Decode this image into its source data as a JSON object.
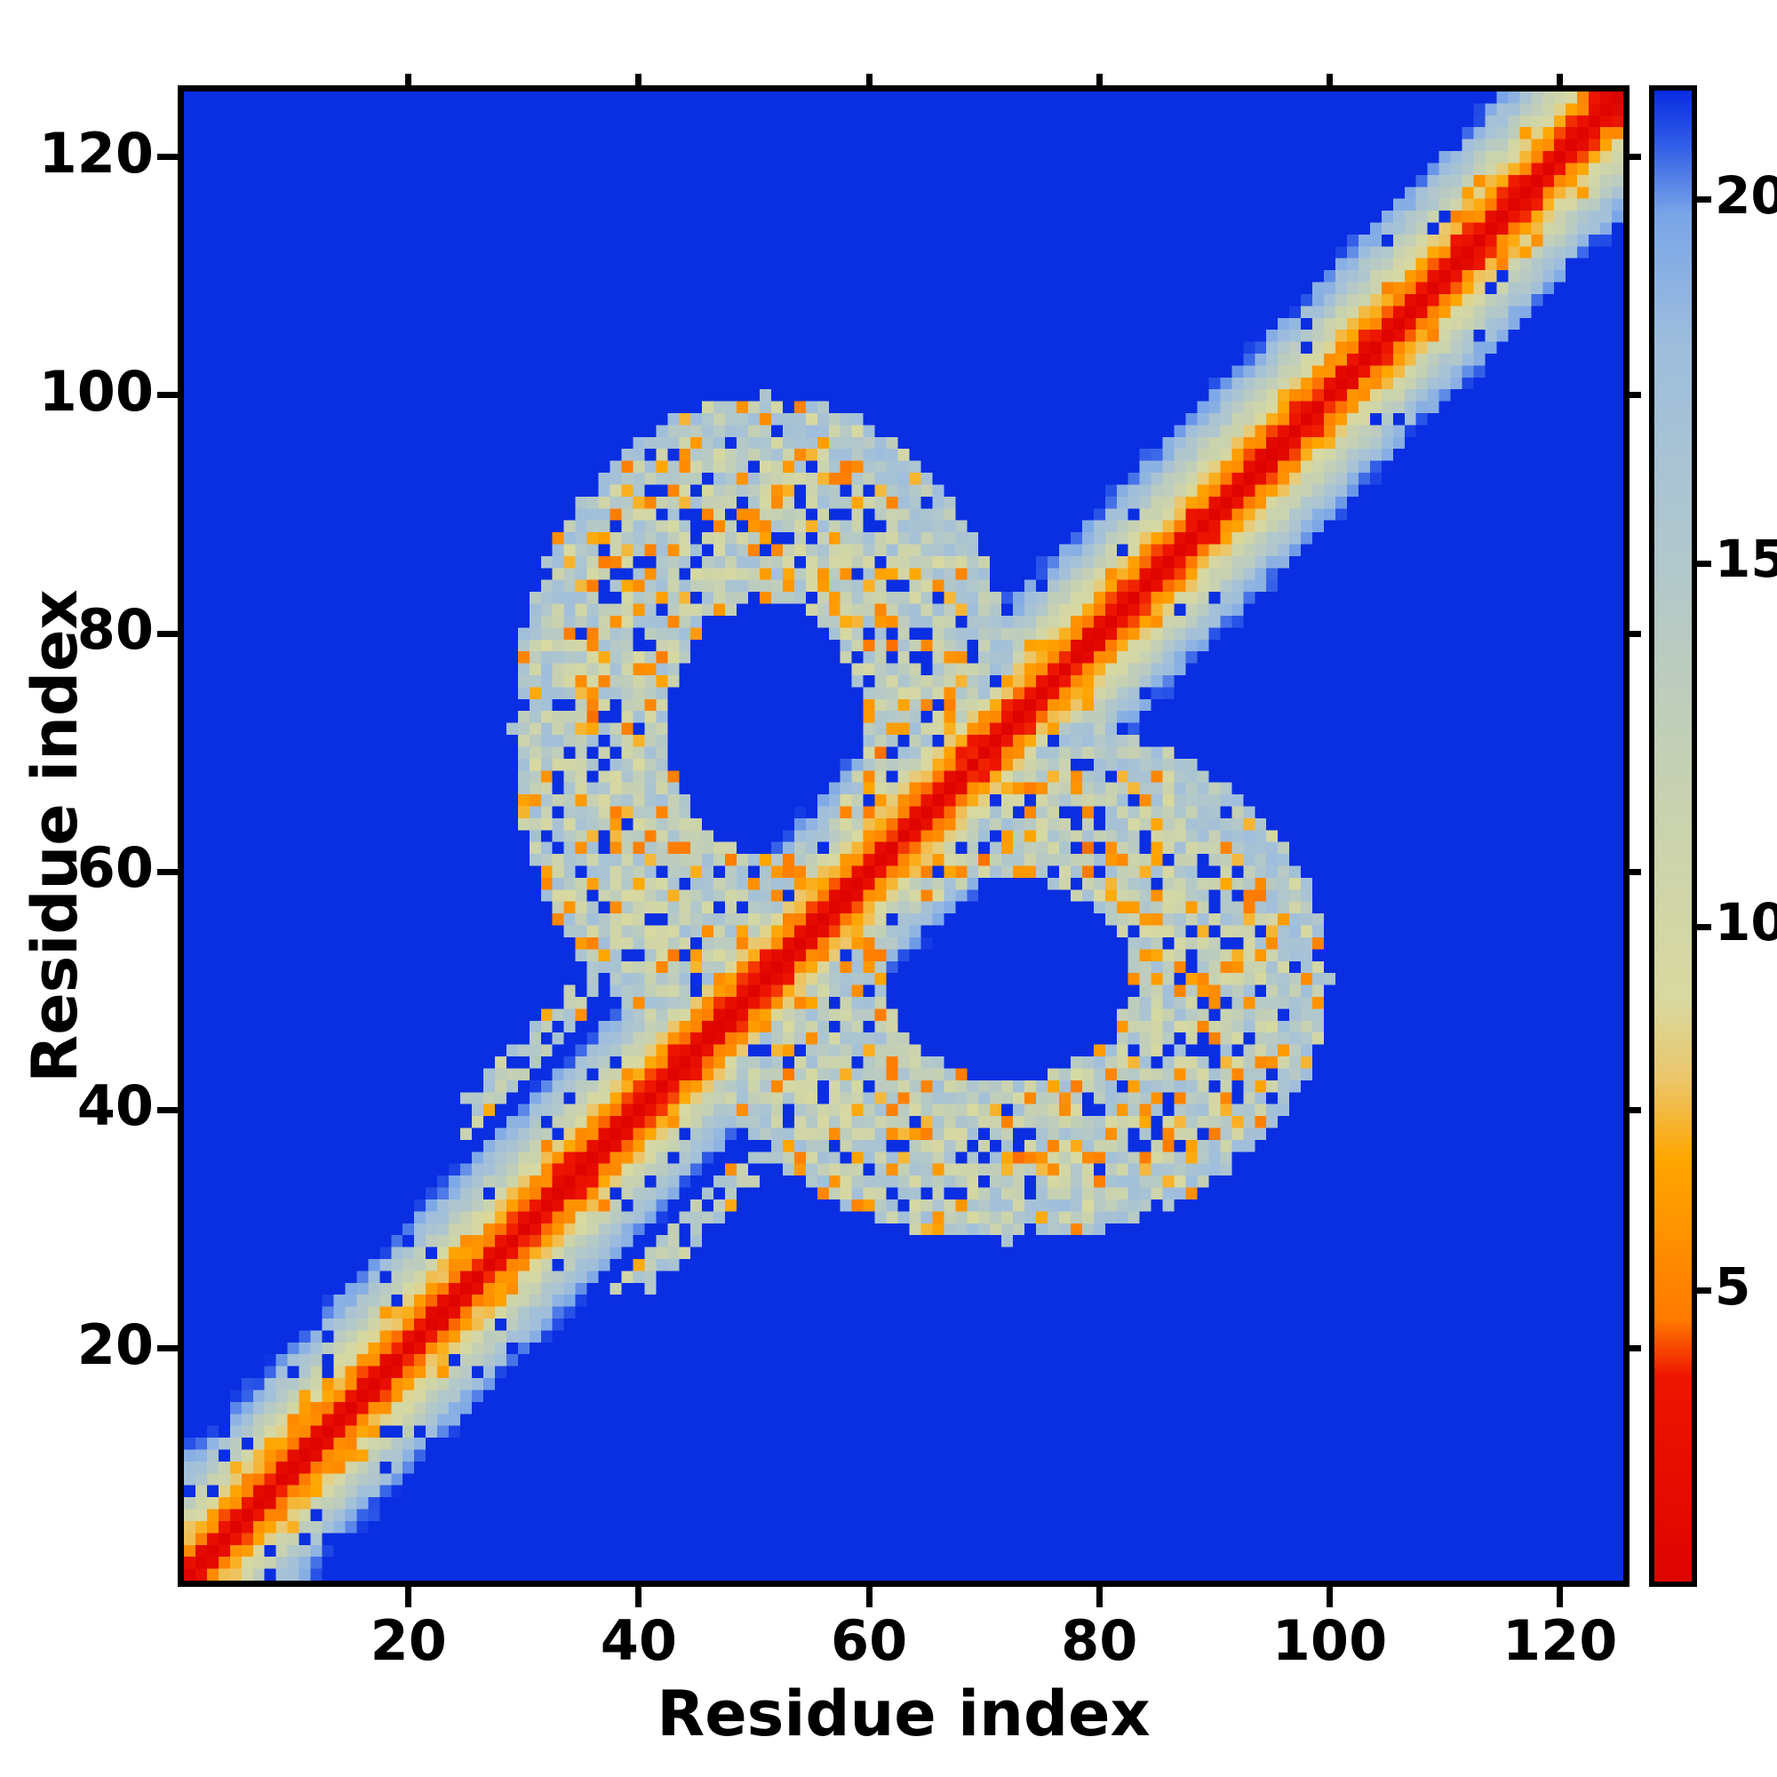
{
  "chart_data": {
    "type": "heatmap",
    "title": "",
    "xlabel": "Residue index",
    "ylabel": "Residue index",
    "x_ticks": [
      20,
      40,
      60,
      80,
      100,
      120
    ],
    "y_ticks": [
      20,
      40,
      60,
      80,
      100,
      120
    ],
    "xlim": [
      1,
      125
    ],
    "ylim": [
      1,
      125
    ],
    "n_residues": 125,
    "grid": false,
    "legend": "none",
    "description": "Symmetric protein residue-residue distance map: red diagonal of shortest distances flanked by orange bands, pale green/blue mid-range values, two mirrored ring-shaped off-diagonal contact clusters (centered near residues (51,72) and (72,51)) speckled with orange close contacts and blue gaps, on a deep blue far-distance background capped at the colorbar maximum.",
    "colorbar": {
      "position": "right",
      "vmin": 1,
      "vmax": 21.5,
      "ticks": [
        5,
        10,
        15,
        20
      ],
      "stops": [
        {
          "v": 1.0,
          "c": "#de0400"
        },
        {
          "v": 3.8,
          "c": "#ee1500"
        },
        {
          "v": 4.6,
          "c": "#ff7a00"
        },
        {
          "v": 6.8,
          "c": "#ffa600"
        },
        {
          "v": 7.9,
          "c": "#ecc66a"
        },
        {
          "v": 9.0,
          "c": "#d8d9a0"
        },
        {
          "v": 12.0,
          "c": "#c7d1b2"
        },
        {
          "v": 15.0,
          "c": "#b1c7cb"
        },
        {
          "v": 18.0,
          "c": "#9fbedd"
        },
        {
          "v": 19.8,
          "c": "#7aa6e8"
        },
        {
          "v": 20.8,
          "c": "#2f5be8"
        },
        {
          "v": 21.5,
          "c": "#0a2ee2"
        }
      ]
    },
    "matrix_model": {
      "symmetric": true,
      "background_value": 21.5,
      "diagonal_band": {
        "intercept": 1.0,
        "slope": 1.9,
        "noise": 2.4,
        "max_separation": 12,
        "blue_speckle_prob": 0.08,
        "orange_fleck_prob": 0.12,
        "orange_fleck_sep_range": [
          3,
          5
        ],
        "orange_fleck_value_range": [
          5.0,
          7.5
        ]
      },
      "near_diagonal_halo": {
        "residue_range": [
          25,
          50
        ],
        "max_separation": 16,
        "blue_prob": 0.25,
        "orange_prob": 0.1,
        "orange_value_range": [
          5.0,
          7.5
        ],
        "mid_value_range": [
          10.0,
          17.0
        ]
      },
      "contact_ring": {
        "center_i": 51,
        "center_j": 72,
        "radius_i": 22,
        "radius_j": 28,
        "inner_fraction": 0.38,
        "min_separation": 5,
        "blue_speckle_prob": 0.1,
        "orange_speckle_prob": 0.18,
        "orange_value_range": [
          4.5,
          7.5
        ],
        "mid_value_range": [
          9.0,
          17.5
        ],
        "rim_fade_start": 0.85,
        "rim_value_range": [
          14.0,
          18.0
        ]
      }
    }
  },
  "colors": {
    "figure_background": "#ffffff",
    "axis_color": "#000000",
    "far_distance_blue": "#0a2ee2",
    "diagonal_red": "#de0400",
    "near_contact_orange": "#ffa600"
  }
}
